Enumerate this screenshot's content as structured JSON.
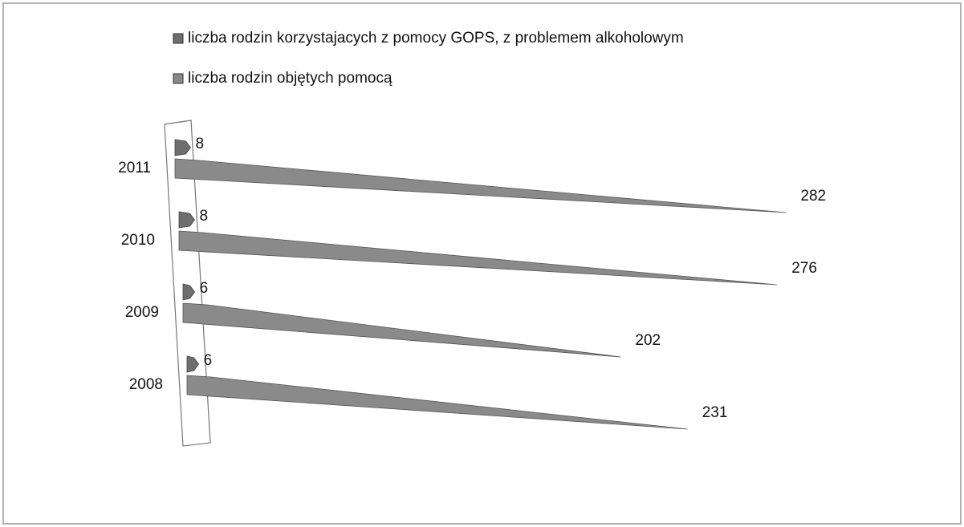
{
  "chart_data": {
    "type": "bar",
    "orientation": "horizontal",
    "categories": [
      "2011",
      "2010",
      "2009",
      "2008"
    ],
    "series": [
      {
        "name": "liczba rodzin korzystajacych z pomocy GOPS, z problemem alkoholowym",
        "color": "#6e6e6e",
        "values": [
          8,
          8,
          6,
          6
        ]
      },
      {
        "name": "liczba rodzin objętych pomocą",
        "color": "#8a8a8a",
        "values": [
          282,
          276,
          202,
          231
        ]
      }
    ],
    "xlim": [
      0,
      300
    ]
  }
}
